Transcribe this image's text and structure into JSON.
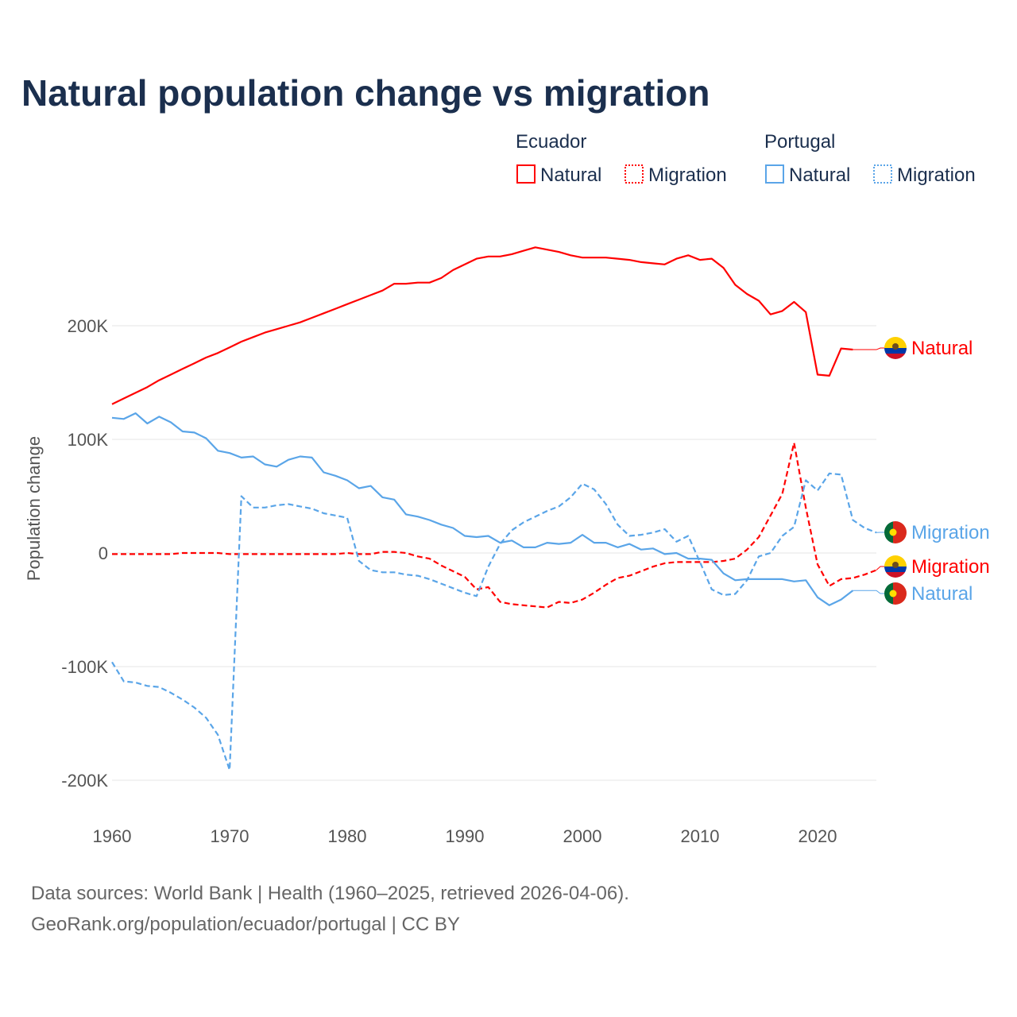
{
  "chart_data": {
    "type": "line",
    "title": "Natural population change vs migration",
    "xlabel": "",
    "ylabel": "Population change",
    "xlim": [
      1960,
      2025
    ],
    "ylim": [
      -215000,
      300000
    ],
    "x_ticks": [
      1960,
      1970,
      1980,
      1990,
      2000,
      2010,
      2020
    ],
    "x_tick_labels": [
      "1960",
      "1970",
      "1980",
      "1990",
      "2000",
      "2010",
      "2020"
    ],
    "y_ticks": [
      -200000,
      -100000,
      0,
      100000,
      200000
    ],
    "y_tick_labels": [
      "-200K",
      "-100K",
      "0",
      "100K",
      "200K"
    ],
    "grid": true,
    "legend": {
      "placement": "top-right",
      "groups": [
        {
          "country": "Ecuador",
          "items": [
            "Natural",
            "Migration"
          ]
        },
        {
          "country": "Portugal",
          "items": [
            "Natural",
            "Migration"
          ]
        }
      ]
    },
    "series": [
      {
        "name": "Natural",
        "country": "Ecuador",
        "color": "#ff0000",
        "dash": "solid",
        "start_year": 1960,
        "values": [
          131,
          136,
          141,
          146,
          152,
          157,
          162,
          167,
          172,
          176,
          181,
          186,
          190,
          194,
          197,
          200,
          203,
          207,
          211,
          215,
          219,
          223,
          227,
          231,
          237,
          237,
          238,
          238,
          242,
          249,
          254,
          259,
          261,
          261,
          263,
          266,
          269,
          267,
          265,
          262,
          260,
          260,
          260,
          259,
          258,
          256,
          255,
          254,
          259,
          262,
          258,
          259,
          251,
          236,
          228,
          222,
          210,
          213,
          221,
          212,
          157,
          156,
          180,
          179
        ]
      },
      {
        "name": "Migration",
        "country": "Ecuador",
        "color": "#ff0000",
        "dash": "dashed",
        "start_year": 1960,
        "values": [
          -1,
          -1,
          -1,
          -1,
          -1,
          -1,
          0,
          0,
          0,
          0,
          -1,
          -1,
          -1,
          -1,
          -1,
          -1,
          -1,
          -1,
          -1,
          -1,
          0,
          -1,
          -1,
          1,
          1,
          0,
          -3,
          -5,
          -11,
          -16,
          -21,
          -32,
          -30,
          -43,
          -45,
          -46,
          -47,
          -48,
          -43,
          -44,
          -41,
          -35,
          -28,
          -22,
          -20,
          -16,
          -12,
          -9,
          -8,
          -8,
          -8,
          -8,
          -7,
          -5,
          3,
          14,
          33,
          52,
          97,
          40,
          -10,
          -29,
          -23,
          -22,
          -19,
          -15
        ]
      },
      {
        "name": "Natural",
        "country": "Portugal",
        "color": "#5aa5e8",
        "dash": "solid",
        "start_year": 1960,
        "values": [
          119,
          118,
          123,
          114,
          120,
          115,
          107,
          106,
          101,
          90,
          88,
          84,
          85,
          78,
          76,
          82,
          85,
          84,
          71,
          68,
          64,
          57,
          59,
          49,
          47,
          34,
          32,
          29,
          25,
          22,
          15,
          14,
          15,
          9,
          11,
          5,
          5,
          9,
          8,
          9,
          16,
          9,
          9,
          5,
          8,
          3,
          4,
          -1,
          0,
          -5,
          -5,
          -6,
          -18,
          -24,
          -23,
          -23,
          -23,
          -23,
          -25,
          -24,
          -39,
          -46,
          -41,
          -33
        ]
      },
      {
        "name": "Migration",
        "country": "Portugal",
        "color": "#5aa5e8",
        "dash": "dashed",
        "start_year": 1960,
        "values": [
          -96,
          -113,
          -114,
          -117,
          -118,
          -123,
          -129,
          -136,
          -145,
          -160,
          -191,
          50,
          40,
          40,
          42,
          43,
          41,
          39,
          35,
          33,
          31,
          -7,
          -15,
          -17,
          -17,
          -19,
          -20,
          -23,
          -27,
          -31,
          -35,
          -38,
          -12,
          8,
          20,
          27,
          32,
          37,
          41,
          49,
          61,
          56,
          43,
          25,
          15,
          16,
          18,
          21,
          10,
          15,
          -8,
          -32,
          -37,
          -36,
          -24,
          -3,
          0,
          15,
          23,
          64,
          55,
          70,
          69,
          29,
          22,
          18
        ]
      }
    ],
    "value_unit": "thousands",
    "end_labels": [
      "Natural",
      "Migration",
      "Migration",
      "Natural"
    ]
  },
  "source": {
    "line1": "Data sources: World Bank | Health (1960–2025, retrieved 2026-04-06).",
    "line2": "GeoRank.org/population/ecuador/portugal | CC BY"
  }
}
